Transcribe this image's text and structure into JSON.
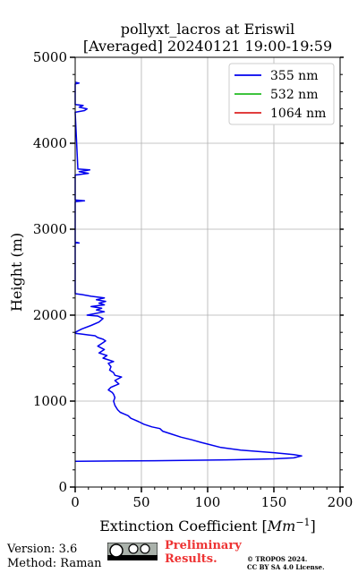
{
  "chart_data": {
    "type": "line",
    "title_line1": "pollyxt_lacros at Eriswil",
    "title_line2": "[Averaged] 20240121 19:00-19:59",
    "xlabel_text": "Extinction Coefficient [",
    "xlabel_unit": "Mm",
    "xlabel_exp": "−1",
    "xlabel_close": "]",
    "ylabel": "Height (m)",
    "xlim": [
      0,
      200
    ],
    "ylim": [
      0,
      5000
    ],
    "xticks": [
      0,
      50,
      100,
      150,
      200
    ],
    "yticks": [
      0,
      1000,
      2000,
      3000,
      4000,
      5000
    ],
    "grid": true,
    "legend_position": "top-right",
    "series": [
      {
        "name": "355 nm",
        "color": "#0000ee",
        "points": [
          [
            0,
            300
          ],
          [
            60,
            306
          ],
          [
            120,
            318
          ],
          [
            150,
            328
          ],
          [
            165,
            340
          ],
          [
            171,
            362
          ],
          [
            165,
            378
          ],
          [
            150,
            400
          ],
          [
            125,
            430
          ],
          [
            110,
            460
          ],
          [
            100,
            500
          ],
          [
            95,
            520
          ],
          [
            88,
            550
          ],
          [
            80,
            580
          ],
          [
            72,
            620
          ],
          [
            66,
            650
          ],
          [
            64,
            680
          ],
          [
            58,
            700
          ],
          [
            52,
            730
          ],
          [
            48,
            760
          ],
          [
            45,
            780
          ],
          [
            42,
            800
          ],
          [
            40,
            830
          ],
          [
            37,
            850
          ],
          [
            34,
            870
          ],
          [
            32,
            900
          ],
          [
            30,
            950
          ],
          [
            29,
            1000
          ],
          [
            30,
            1040
          ],
          [
            29,
            1080
          ],
          [
            28,
            1100
          ],
          [
            25,
            1130
          ],
          [
            27,
            1160
          ],
          [
            33,
            1200
          ],
          [
            30,
            1240
          ],
          [
            35,
            1280
          ],
          [
            30,
            1300
          ],
          [
            29,
            1330
          ],
          [
            26,
            1360
          ],
          [
            27,
            1400
          ],
          [
            25,
            1440
          ],
          [
            29,
            1460
          ],
          [
            25,
            1480
          ],
          [
            21,
            1500
          ],
          [
            24,
            1530
          ],
          [
            18,
            1560
          ],
          [
            22,
            1600
          ],
          [
            17,
            1640
          ],
          [
            21,
            1680
          ],
          [
            23,
            1700
          ],
          [
            21,
            1720
          ],
          [
            17,
            1740
          ],
          [
            15,
            1760
          ],
          [
            10,
            1770
          ],
          [
            5,
            1780
          ],
          [
            0,
            1790
          ],
          [
            0,
            1800
          ],
          [
            5,
            1840
          ],
          [
            12,
            1880
          ],
          [
            18,
            1920
          ],
          [
            21,
            1960
          ],
          [
            17,
            1990
          ],
          [
            9,
            2000
          ],
          [
            22,
            2040
          ],
          [
            16,
            2060
          ],
          [
            20,
            2080
          ],
          [
            12,
            2100
          ],
          [
            22,
            2120
          ],
          [
            18,
            2140
          ],
          [
            23,
            2160
          ],
          [
            16,
            2180
          ],
          [
            22,
            2200
          ],
          [
            12,
            2220
          ],
          [
            5,
            2240
          ],
          [
            0,
            2250
          ],
          [
            0,
            2840
          ],
          [
            3,
            2840
          ],
          [
            0,
            2850
          ],
          [
            0,
            3320
          ],
          [
            7,
            3330
          ],
          [
            0,
            3340
          ],
          [
            0,
            3630
          ],
          [
            10,
            3650
          ],
          [
            3,
            3670
          ],
          [
            11,
            3690
          ],
          [
            2,
            3700
          ],
          [
            0,
            4360
          ],
          [
            7,
            4380
          ],
          [
            9,
            4400
          ],
          [
            3,
            4420
          ],
          [
            6,
            4440
          ],
          [
            0,
            4450
          ],
          [
            0,
            4690
          ],
          [
            3,
            4700
          ],
          [
            0,
            4710
          ]
        ]
      },
      {
        "name": "532 nm",
        "color": "#22bb22",
        "points": []
      },
      {
        "name": "1064 nm",
        "color": "#dd2222",
        "points": []
      }
    ]
  },
  "footer": {
    "version": "Version: 3.6",
    "method": "Method: Raman",
    "preliminary_line1": "Preliminary",
    "preliminary_line2": "Results.",
    "copyright_line1": "© TROPOS 2024.",
    "copyright_line2": "CC BY SA 4.0 License."
  }
}
